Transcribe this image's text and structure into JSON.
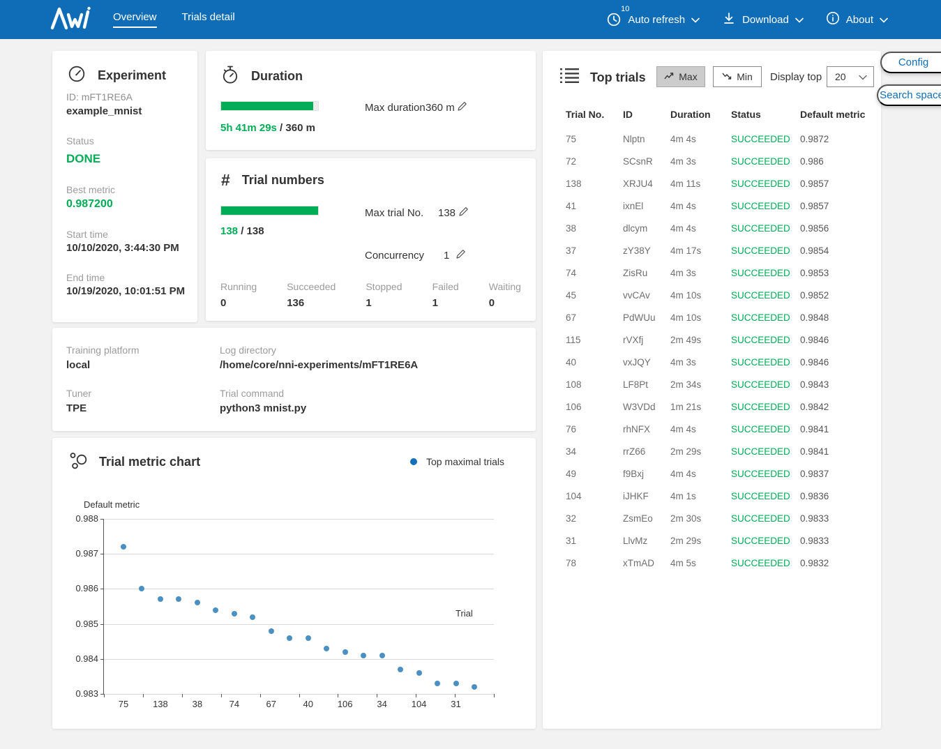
{
  "colors": {
    "navbar_bg": "#0f6db8",
    "success_green": "#00ad56",
    "scatter_blue": "#4a90c2",
    "legend_blue": "#1070ba",
    "link_blue": "#0f6db8"
  },
  "navbar": {
    "links": [
      {
        "label": "Overview",
        "active": true
      },
      {
        "label": "Trials detail",
        "active": false
      }
    ],
    "auto_refresh": {
      "label": "Auto refresh",
      "badge": "10"
    },
    "download": {
      "label": "Download"
    },
    "about": {
      "label": "About"
    }
  },
  "experiment_card": {
    "title": "Experiment",
    "id_text": "ID: mFT1RE6A",
    "name": "example_mnist",
    "status_label": "Status",
    "status_value": "DONE",
    "best_metric_label": "Best metric",
    "best_metric_value": "0.987200",
    "start_time_label": "Start time",
    "start_time_value": "10/10/2020, 3:44:30 PM",
    "end_time_label": "End time",
    "end_time_value": "10/19/2020, 10:01:51 PM"
  },
  "duration_card": {
    "title": "Duration",
    "progress_percent": 94.9,
    "elapsed": "5h 41m 29s",
    "separator": " / ",
    "total": "360 m",
    "max_duration_label": "Max duration",
    "max_duration_value": "360 m"
  },
  "trial_numbers_card": {
    "title": "Trial numbers",
    "hash_icon": "#",
    "progress_percent": 100,
    "current": "138",
    "separator": " / ",
    "total": "138",
    "max_trial_label": "Max trial No.",
    "max_trial_value": "138",
    "concurrency_label": "Concurrency",
    "concurrency_value": "1",
    "stats": [
      {
        "label": "Running",
        "value": "0"
      },
      {
        "label": "Succeeded",
        "value": "136"
      },
      {
        "label": "Stopped",
        "value": "1"
      },
      {
        "label": "Failed",
        "value": "1"
      },
      {
        "label": "Waiting",
        "value": "0"
      }
    ]
  },
  "platform_card": {
    "training_platform_label": "Training platform",
    "training_platform_value": "local",
    "log_directory_label": "Log directory",
    "log_directory_value": "/home/core/nni-experiments/mFT1RE6A",
    "tuner_label": "Tuner",
    "tuner_value": "TPE",
    "trial_command_label": "Trial command",
    "trial_command_value": "python3 mnist.py"
  },
  "metric_chart_card": {
    "title": "Trial metric chart",
    "legend_label": "Top maximal trials"
  },
  "chart_data": {
    "type": "scatter",
    "title": "Trial metric chart",
    "xlabel": "Trial",
    "ylabel": "Default metric",
    "x": [
      75,
      72,
      138,
      41,
      38,
      37,
      74,
      45,
      67,
      115,
      40,
      108,
      106,
      76,
      34,
      49,
      104,
      32,
      31,
      78
    ],
    "y": [
      0.9872,
      0.986,
      0.9857,
      0.9857,
      0.9856,
      0.9854,
      0.9853,
      0.9852,
      0.9848,
      0.9846,
      0.9846,
      0.9843,
      0.9842,
      0.9841,
      0.9841,
      0.9837,
      0.9836,
      0.9833,
      0.9833,
      0.9832
    ],
    "x_tick_labels": [
      "75",
      "138",
      "38",
      "74",
      "67",
      "40",
      "106",
      "34",
      "104",
      "31"
    ],
    "y_ticks": [
      0.988,
      0.987,
      0.986,
      0.985,
      0.984,
      0.983
    ],
    "ylim": [
      0.983,
      0.988
    ],
    "grid": true,
    "legend_position": "top-right",
    "point_color": "#4a90c2"
  },
  "top_trials_card": {
    "title": "Top trials",
    "max_button": "Max",
    "min_button": "Min",
    "display_top_label": "Display top",
    "display_top_value": "20",
    "columns": [
      "Trial No.",
      "ID",
      "Duration",
      "Status",
      "Default metric"
    ],
    "rows": [
      [
        "75",
        "Nlptn",
        "4m 4s",
        "SUCCEEDED",
        "0.9872"
      ],
      [
        "72",
        "SCsnR",
        "4m 3s",
        "SUCCEEDED",
        "0.986"
      ],
      [
        "138",
        "XRJU4",
        "4m 11s",
        "SUCCEEDED",
        "0.9857"
      ],
      [
        "41",
        "ixnEl",
        "4m 4s",
        "SUCCEEDED",
        "0.9857"
      ],
      [
        "38",
        "dlcym",
        "4m 4s",
        "SUCCEEDED",
        "0.9856"
      ],
      [
        "37",
        "zY38Y",
        "4m 17s",
        "SUCCEEDED",
        "0.9854"
      ],
      [
        "74",
        "ZisRu",
        "4m 3s",
        "SUCCEEDED",
        "0.9853"
      ],
      [
        "45",
        "vvCAv",
        "4m 10s",
        "SUCCEEDED",
        "0.9852"
      ],
      [
        "67",
        "PdWUu",
        "4m 10s",
        "SUCCEEDED",
        "0.9848"
      ],
      [
        "115",
        "rVXfj",
        "2m 49s",
        "SUCCEEDED",
        "0.9846"
      ],
      [
        "40",
        "vxJQY",
        "4m 3s",
        "SUCCEEDED",
        "0.9846"
      ],
      [
        "108",
        "LF8Pt",
        "2m 34s",
        "SUCCEEDED",
        "0.9843"
      ],
      [
        "106",
        "W3VDd",
        "1m 21s",
        "SUCCEEDED",
        "0.9842"
      ],
      [
        "76",
        "rhNFX",
        "4m 4s",
        "SUCCEEDED",
        "0.9841"
      ],
      [
        "34",
        "rrZ66",
        "2m 29s",
        "SUCCEEDED",
        "0.9841"
      ],
      [
        "49",
        "f9Bxj",
        "4m 4s",
        "SUCCEEDED",
        "0.9837"
      ],
      [
        "104",
        "iJHKF",
        "4m 1s",
        "SUCCEEDED",
        "0.9836"
      ],
      [
        "32",
        "ZsmEo",
        "2m 30s",
        "SUCCEEDED",
        "0.9833"
      ],
      [
        "31",
        "LlvMz",
        "2m 29s",
        "SUCCEEDED",
        "0.9833"
      ],
      [
        "78",
        "xTmAD",
        "4m 5s",
        "SUCCEEDED",
        "0.9832"
      ]
    ]
  },
  "side_buttons": {
    "config": "Config",
    "search_space": "Search space"
  }
}
